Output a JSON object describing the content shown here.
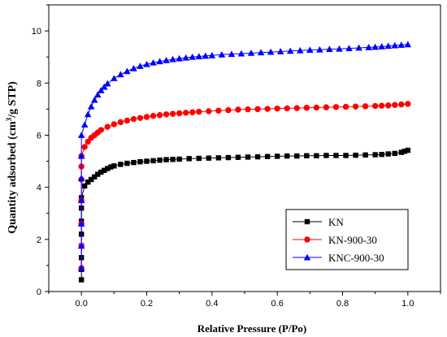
{
  "chart_data": {
    "type": "line",
    "title": "",
    "xlabel": "Relative Pressure (P/Po)",
    "ylabel_parts": [
      "Quantity adsorbed (cm",
      "3",
      "/g STP)"
    ],
    "xlim": [
      -0.1,
      1.1
    ],
    "ylim": [
      0,
      11
    ],
    "xticks": [
      0.0,
      0.2,
      0.4,
      0.6,
      0.8,
      1.0
    ],
    "xtick_labels": [
      "0.0",
      "0.2",
      "0.4",
      "0.6",
      "0.8",
      "1.0"
    ],
    "yticks": [
      0,
      2,
      4,
      6,
      8,
      10
    ],
    "ytick_labels": [
      "0",
      "2",
      "4",
      "6",
      "8",
      "10"
    ],
    "grid": false,
    "legend_position": "bottom-right",
    "series": [
      {
        "name": "KN",
        "color": "#000000",
        "marker": "square",
        "x": [
          0.0,
          0.0,
          0.0,
          0.0,
          0.0,
          0.0,
          0.0,
          0.0,
          0.01,
          0.02,
          0.03,
          0.04,
          0.05,
          0.06,
          0.07,
          0.08,
          0.09,
          0.1,
          0.12,
          0.14,
          0.16,
          0.18,
          0.2,
          0.22,
          0.24,
          0.26,
          0.28,
          0.3,
          0.33,
          0.36,
          0.39,
          0.42,
          0.45,
          0.48,
          0.51,
          0.54,
          0.57,
          0.6,
          0.63,
          0.66,
          0.69,
          0.72,
          0.75,
          0.78,
          0.81,
          0.84,
          0.87,
          0.9,
          0.92,
          0.94,
          0.96,
          0.98,
          0.99,
          1.0
        ],
        "y": [
          0.45,
          0.85,
          1.3,
          1.75,
          2.2,
          2.7,
          3.2,
          3.6,
          4.05,
          4.2,
          4.3,
          4.4,
          4.5,
          4.58,
          4.65,
          4.72,
          4.78,
          4.82,
          4.88,
          4.92,
          4.95,
          4.98,
          5.0,
          5.02,
          5.04,
          5.06,
          5.07,
          5.08,
          5.1,
          5.11,
          5.12,
          5.13,
          5.14,
          5.15,
          5.16,
          5.17,
          5.18,
          5.19,
          5.2,
          5.2,
          5.21,
          5.21,
          5.22,
          5.22,
          5.22,
          5.23,
          5.24,
          5.25,
          5.26,
          5.28,
          5.3,
          5.34,
          5.38,
          5.42
        ]
      },
      {
        "name": "KN-900-30",
        "color": "#ff0000",
        "marker": "circle",
        "x": [
          0.0,
          0.0,
          0.0,
          0.0,
          0.0,
          0.0,
          0.0,
          0.01,
          0.02,
          0.03,
          0.04,
          0.05,
          0.06,
          0.08,
          0.1,
          0.12,
          0.14,
          0.16,
          0.18,
          0.2,
          0.22,
          0.24,
          0.26,
          0.28,
          0.3,
          0.32,
          0.34,
          0.36,
          0.39,
          0.42,
          0.45,
          0.48,
          0.51,
          0.54,
          0.57,
          0.6,
          0.63,
          0.66,
          0.69,
          0.72,
          0.75,
          0.78,
          0.81,
          0.84,
          0.87,
          0.9,
          0.92,
          0.94,
          0.96,
          0.98,
          1.0
        ],
        "y": [
          0.9,
          1.75,
          2.6,
          3.5,
          4.3,
          4.8,
          5.2,
          5.55,
          5.75,
          5.9,
          6.0,
          6.1,
          6.2,
          6.32,
          6.42,
          6.5,
          6.56,
          6.62,
          6.66,
          6.7,
          6.74,
          6.77,
          6.8,
          6.82,
          6.84,
          6.86,
          6.88,
          6.9,
          6.92,
          6.94,
          6.96,
          6.98,
          6.99,
          7.0,
          7.01,
          7.02,
          7.03,
          7.04,
          7.05,
          7.06,
          7.07,
          7.08,
          7.09,
          7.1,
          7.11,
          7.12,
          7.13,
          7.14,
          7.16,
          7.18,
          7.2
        ]
      },
      {
        "name": "KNC-900-30",
        "color": "#0000ff",
        "marker": "triangle",
        "x": [
          0.0,
          0.0,
          0.0,
          0.0,
          0.0,
          0.0,
          0.0,
          0.01,
          0.02,
          0.03,
          0.04,
          0.05,
          0.06,
          0.07,
          0.08,
          0.1,
          0.12,
          0.14,
          0.16,
          0.18,
          0.2,
          0.22,
          0.24,
          0.26,
          0.28,
          0.3,
          0.32,
          0.34,
          0.36,
          0.38,
          0.4,
          0.43,
          0.46,
          0.49,
          0.52,
          0.55,
          0.58,
          0.61,
          0.64,
          0.67,
          0.7,
          0.73,
          0.76,
          0.79,
          0.82,
          0.85,
          0.88,
          0.9,
          0.92,
          0.94,
          0.96,
          0.98,
          1.0
        ],
        "y": [
          0.9,
          1.75,
          2.6,
          3.5,
          4.35,
          5.2,
          6.0,
          6.4,
          6.8,
          7.1,
          7.35,
          7.55,
          7.72,
          7.85,
          7.98,
          8.18,
          8.33,
          8.45,
          8.56,
          8.65,
          8.72,
          8.78,
          8.83,
          8.87,
          8.91,
          8.94,
          8.97,
          9.0,
          9.02,
          9.04,
          9.06,
          9.09,
          9.11,
          9.13,
          9.15,
          9.17,
          9.19,
          9.21,
          9.23,
          9.25,
          9.27,
          9.28,
          9.3,
          9.31,
          9.33,
          9.35,
          9.37,
          9.38,
          9.4,
          9.42,
          9.44,
          9.46,
          9.48
        ]
      }
    ]
  }
}
